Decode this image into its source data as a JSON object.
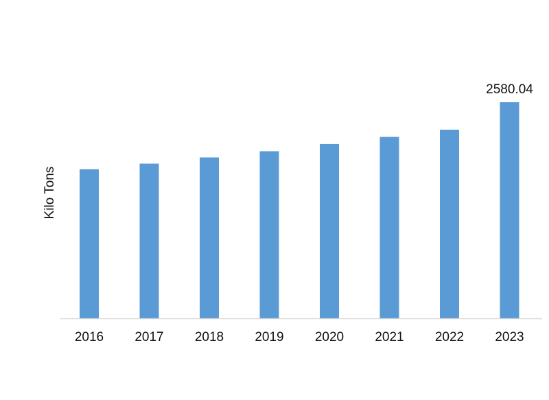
{
  "colors": {
    "bar": "#5b9bd5",
    "axis": "#d9d9d9",
    "text": "#111111",
    "background": "#ffffff"
  },
  "chart_data": {
    "type": "bar",
    "title": "",
    "xlabel": "",
    "ylabel": "Kilo Tons",
    "categories": [
      "2016",
      "2017",
      "2018",
      "2019",
      "2020",
      "2021",
      "2022",
      "2023"
    ],
    "series": [
      {
        "values": [
          1781,
          1847,
          1921,
          1995,
          2081,
          2166,
          2252,
          2580.04
        ]
      }
    ],
    "data_labels": [
      {
        "category": "2023",
        "text": "2580.04"
      }
    ],
    "ylim": [
      0,
      2580.04
    ],
    "y_axis_visible": false,
    "grid": false,
    "legend": "none"
  }
}
